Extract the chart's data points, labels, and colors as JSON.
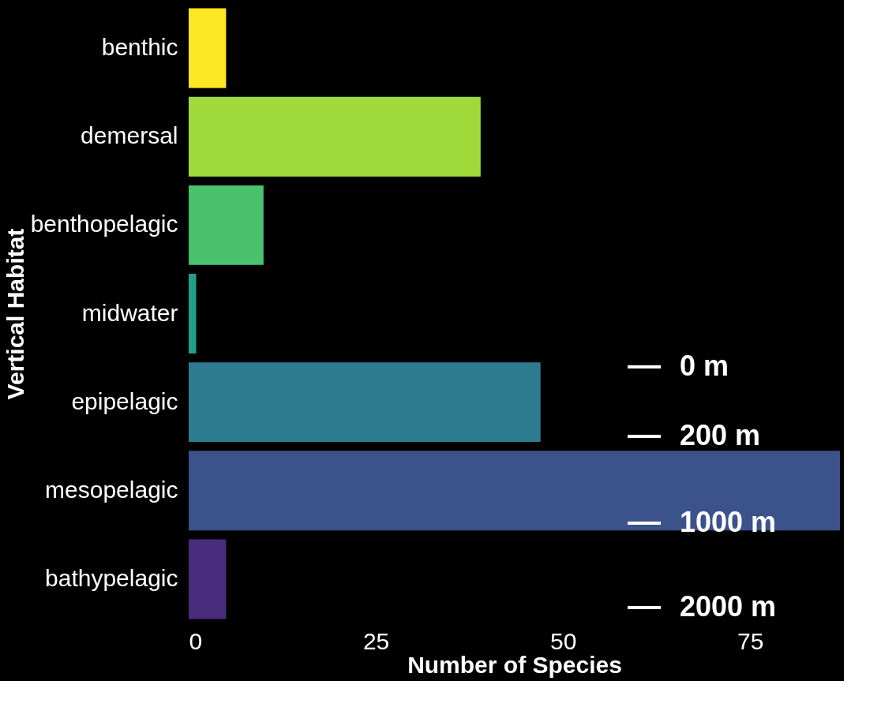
{
  "chart_data": {
    "type": "bar",
    "orientation": "horizontal",
    "xlabel": "Number of Species",
    "ylabel": "Vertical Habitat",
    "categories": [
      "benthic",
      "demersal",
      "benthopelagic",
      "midwater",
      "epipelagic",
      "mesopelagic",
      "bathypelagic"
    ],
    "values": [
      5,
      39,
      10,
      1,
      47,
      87,
      5
    ],
    "colors": [
      "#fde725",
      "#9fda3a",
      "#4ac16d",
      "#1fa187",
      "#2c7b8f",
      "#3b528b",
      "#472d7b"
    ],
    "xlim": [
      0,
      87
    ],
    "xticks": [
      0,
      25,
      50,
      75
    ],
    "grid": false,
    "legend": false,
    "annotations": [
      "0 m",
      "200 m",
      "1000 m",
      "2000 m"
    ]
  }
}
